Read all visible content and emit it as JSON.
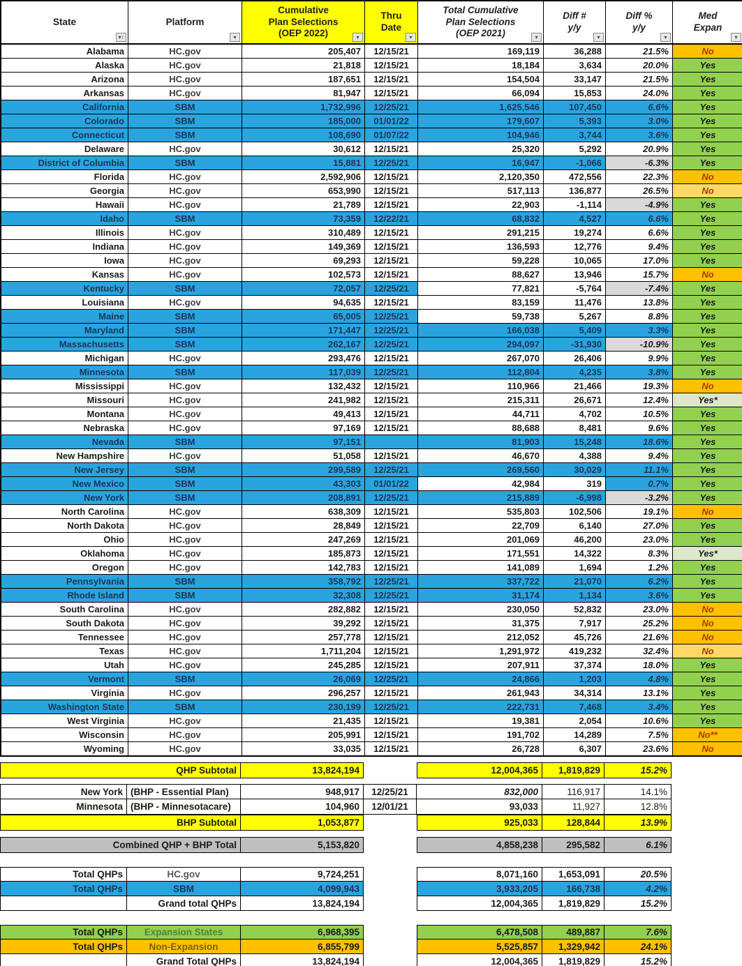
{
  "title": "Cumulative ACA Plan Selections by State — OEP 2022 vs OEP 2021",
  "colors": {
    "blue": "#2AA4DE",
    "navy": "#17375D",
    "yellow": "#FFFF00",
    "green": "#92D050",
    "lgreen": "#DCE8C8",
    "orange": "#FFC000",
    "lorange": "#FFD965",
    "gray_cell": "#D9D9D9",
    "combined_gray": "#BFBFBF",
    "no_text": "#A93A0A",
    "expansion_label": "#55803C",
    "nonexpansion_label": "#7F6000",
    "hcgov_total_label": "#595959"
  },
  "columns": [
    {
      "id": "state",
      "label": "State",
      "italic": false,
      "yellow": false,
      "filter": "sort"
    },
    {
      "id": "platform",
      "label": "Platform",
      "italic": false,
      "yellow": false,
      "filter": "drop"
    },
    {
      "id": "oep2022",
      "label": "Cumulative\nPlan Selections\n(OEP 2022)",
      "italic": false,
      "yellow": true,
      "filter": "drop"
    },
    {
      "id": "thru_date",
      "label": "Thru\nDate",
      "italic": false,
      "yellow": true,
      "filter": "drop"
    },
    {
      "id": "oep2021",
      "label": "Total Cumulative\nPlan Selections\n(OEP 2021)",
      "italic": true,
      "yellow": false,
      "filter": "drop"
    },
    {
      "id": "diff_num",
      "label": "Diff #\ny/y",
      "italic": true,
      "yellow": false,
      "filter": "drop"
    },
    {
      "id": "diff_pct",
      "label": "Diff %\ny/y",
      "italic": true,
      "yellow": false,
      "filter": "drop"
    },
    {
      "id": "med_expan",
      "label": "Med\nExpan",
      "italic": true,
      "yellow": false,
      "filter": "drop"
    }
  ],
  "states": [
    {
      "state": "Alabama",
      "platform": "HC.gov",
      "type": "hc",
      "v22": "205,407",
      "thru": "12/15/21",
      "v21": "169,119",
      "dn": "36,288",
      "dp": "21.5%",
      "med": "No",
      "medc": "orange"
    },
    {
      "state": "Alaska",
      "platform": "HC.gov",
      "type": "hc",
      "v22": "21,818",
      "thru": "12/15/21",
      "v21": "18,184",
      "dn": "3,634",
      "dp": "20.0%",
      "med": "Yes",
      "medc": "green"
    },
    {
      "state": "Arizona",
      "platform": "HC.gov",
      "type": "hc",
      "v22": "187,651",
      "thru": "12/15/21",
      "v21": "154,504",
      "dn": "33,147",
      "dp": "21.5%",
      "med": "Yes",
      "medc": "green"
    },
    {
      "state": "Arkansas",
      "platform": "HC.gov",
      "type": "hc",
      "v22": "81,947",
      "thru": "12/15/21",
      "v21": "66,094",
      "dn": "15,853",
      "dp": "24.0%",
      "med": "Yes",
      "medc": "green"
    },
    {
      "state": "California",
      "platform": "SBM",
      "type": "sbm",
      "v22": "1,732,996",
      "thru": "12/25/21",
      "v21": "1,625,546",
      "dn": "107,450",
      "dp": "6.6%",
      "med": "Yes",
      "medc": "green"
    },
    {
      "state": "Colorado",
      "platform": "SBM",
      "type": "sbm",
      "v22": "185,000",
      "thru": "01/01/22",
      "v21": "179,607",
      "dn": "5,393",
      "dp": "3.0%",
      "med": "Yes",
      "medc": "green"
    },
    {
      "state": "Connecticut",
      "platform": "SBM",
      "type": "sbm",
      "v22": "108,690",
      "thru": "01/07/22",
      "v21": "104,946",
      "dn": "3,744",
      "dp": "3.6%",
      "med": "Yes",
      "medc": "green"
    },
    {
      "state": "Delaware",
      "platform": "HC.gov",
      "type": "hc",
      "v22": "30,612",
      "thru": "12/15/21",
      "v21": "25,320",
      "dn": "5,292",
      "dp": "20.9%",
      "med": "Yes",
      "medc": "green"
    },
    {
      "state": "District of Columbia",
      "platform": "SBM",
      "type": "sbm",
      "v22": "15,881",
      "thru": "12/25/21",
      "v21": "16,947",
      "dn": "-1,066",
      "dp": "-6.3%",
      "odp": "gray",
      "med": "Yes",
      "medc": "green"
    },
    {
      "state": "Florida",
      "platform": "HC.gov",
      "type": "hc",
      "v22": "2,592,906",
      "thru": "12/15/21",
      "v21": "2,120,350",
      "dn": "472,556",
      "dp": "22.3%",
      "med": "No",
      "medc": "orange"
    },
    {
      "state": "Georgia",
      "platform": "HC.gov",
      "type": "hc",
      "v22": "653,990",
      "thru": "12/15/21",
      "v21": "517,113",
      "dn": "136,877",
      "dp": "26.5%",
      "med": "No",
      "medc": "lorange"
    },
    {
      "state": "Hawaii",
      "platform": "HC.gov",
      "type": "hc",
      "v22": "21,789",
      "thru": "12/15/21",
      "v21": "22,903",
      "dn": "-1,114",
      "dp": "-4.9%",
      "odp": "gray",
      "med": "Yes",
      "medc": "green"
    },
    {
      "state": "Idaho",
      "platform": "SBM",
      "type": "sbm",
      "v22": "73,359",
      "thru": "12/22/21",
      "v21": "68,832",
      "dn": "4,527",
      "dp": "6.6%",
      "med": "Yes",
      "medc": "green"
    },
    {
      "state": "Illinois",
      "platform": "HC.gov",
      "type": "hc",
      "v22": "310,489",
      "thru": "12/15/21",
      "v21": "291,215",
      "dn": "19,274",
      "dp": "6.6%",
      "med": "Yes",
      "medc": "green"
    },
    {
      "state": "Indiana",
      "platform": "HC.gov",
      "type": "hc",
      "v22": "149,369",
      "thru": "12/15/21",
      "v21": "136,593",
      "dn": "12,776",
      "dp": "9.4%",
      "med": "Yes",
      "medc": "green"
    },
    {
      "state": "Iowa",
      "platform": "HC.gov",
      "type": "hc",
      "v22": "69,293",
      "thru": "12/15/21",
      "v21": "59,228",
      "dn": "10,065",
      "dp": "17.0%",
      "med": "Yes",
      "medc": "green"
    },
    {
      "state": "Kansas",
      "platform": "HC.gov",
      "type": "hc",
      "v22": "102,573",
      "thru": "12/15/21",
      "v21": "88,627",
      "dn": "13,946",
      "dp": "15.7%",
      "med": "No",
      "medc": "orange"
    },
    {
      "state": "Kentucky",
      "platform": "SBM",
      "type": "sbm",
      "v22": "72,057",
      "thru": "12/25/21",
      "v21": "77,821",
      "o21": "white",
      "dn": "-5,764",
      "odn": "white",
      "dp": "-7.4%",
      "odp": "gray",
      "med": "Yes",
      "medc": "green"
    },
    {
      "state": "Louisiana",
      "platform": "HC.gov",
      "type": "hc",
      "v22": "94,635",
      "thru": "12/15/21",
      "v21": "83,159",
      "dn": "11,476",
      "dp": "13.8%",
      "med": "Yes",
      "medc": "green"
    },
    {
      "state": "Maine",
      "platform": "SBM",
      "type": "sbm",
      "v22": "65,005",
      "thru": "12/25/21",
      "v21": "59,738",
      "o21": "white",
      "dn": "5,267",
      "odn": "white",
      "dp": "8.8%",
      "odp": "white",
      "med": "Yes",
      "medc": "green"
    },
    {
      "state": "Maryland",
      "platform": "SBM",
      "type": "sbm",
      "v22": "171,447",
      "thru": "12/25/21",
      "v21": "166,038",
      "dn": "5,409",
      "dp": "3.3%",
      "med": "Yes",
      "medc": "green"
    },
    {
      "state": "Massachusetts",
      "platform": "SBM",
      "type": "sbm",
      "v22": "262,167",
      "thru": "12/25/21",
      "v21": "294,097",
      "dn": "-31,930",
      "dp": "-10.9%",
      "odp": "gray",
      "med": "Yes",
      "medc": "green"
    },
    {
      "state": "Michigan",
      "platform": "HC.gov",
      "type": "hc",
      "v22": "293,476",
      "thru": "12/15/21",
      "v21": "267,070",
      "dn": "26,406",
      "dp": "9.9%",
      "med": "Yes",
      "medc": "green"
    },
    {
      "state": "Minnesota",
      "platform": "SBM",
      "type": "sbm",
      "v22": "117,039",
      "thru": "12/25/21",
      "v21": "112,804",
      "dn": "4,235",
      "dp": "3.8%",
      "med": "Yes",
      "medc": "green"
    },
    {
      "state": "Mississippi",
      "platform": "HC.gov",
      "type": "hc",
      "v22": "132,432",
      "thru": "12/15/21",
      "v21": "110,966",
      "dn": "21,466",
      "dp": "19.3%",
      "med": "No",
      "medc": "orange"
    },
    {
      "state": "Missouri",
      "platform": "HC.gov",
      "type": "hc",
      "v22": "241,982",
      "thru": "12/15/21",
      "v21": "215,311",
      "dn": "26,671",
      "dp": "12.4%",
      "med": "Yes*",
      "medc": "lgreen"
    },
    {
      "state": "Montana",
      "platform": "HC.gov",
      "type": "hc",
      "v22": "49,413",
      "thru": "12/15/21",
      "v21": "44,711",
      "dn": "4,702",
      "dp": "10.5%",
      "med": "Yes",
      "medc": "green"
    },
    {
      "state": "Nebraska",
      "platform": "HC.gov",
      "type": "hc",
      "v22": "97,169",
      "thru": "12/15/21",
      "v21": "88,688",
      "dn": "8,481",
      "dp": "9.6%",
      "med": "Yes",
      "medc": "green"
    },
    {
      "state": "Nevada",
      "platform": "SBM",
      "type": "sbm",
      "v22": "97,151",
      "thru": "",
      "v21": "81,903",
      "dn": "15,248",
      "dp": "18.6%",
      "med": "Yes",
      "medc": "green"
    },
    {
      "state": "New Hampshire",
      "platform": "HC.gov",
      "type": "hc",
      "v22": "51,058",
      "thru": "12/15/21",
      "v21": "46,670",
      "dn": "4,388",
      "dp": "9.4%",
      "med": "Yes",
      "medc": "green"
    },
    {
      "state": "New Jersey",
      "platform": "SBM",
      "type": "sbm",
      "v22": "299,589",
      "thru": "12/25/21",
      "v21": "269,560",
      "dn": "30,029",
      "dp": "11.1%",
      "med": "Yes",
      "medc": "green"
    },
    {
      "state": "New Mexico",
      "platform": "SBM",
      "type": "sbm",
      "v22": "43,303",
      "thru": "01/01/22",
      "v21": "42,984",
      "o21": "white",
      "dn": "319",
      "odn": "white",
      "dp": "0.7%",
      "med": "Yes",
      "medc": "green"
    },
    {
      "state": "New York",
      "platform": "SBM",
      "type": "sbm",
      "v22": "208,891",
      "thru": "12/25/21",
      "v21": "215,889",
      "dn": "-6,998",
      "dp": "-3.2%",
      "odp": "gray",
      "med": "Yes",
      "medc": "green"
    },
    {
      "state": "North Carolina",
      "platform": "HC.gov",
      "type": "hc",
      "v22": "638,309",
      "thru": "12/15/21",
      "v21": "535,803",
      "dn": "102,506",
      "dp": "19.1%",
      "med": "No",
      "medc": "orange"
    },
    {
      "state": "North Dakota",
      "platform": "HC.gov",
      "type": "hc",
      "v22": "28,849",
      "thru": "12/15/21",
      "v21": "22,709",
      "dn": "6,140",
      "dp": "27.0%",
      "med": "Yes",
      "medc": "green"
    },
    {
      "state": "Ohio",
      "platform": "HC.gov",
      "type": "hc",
      "v22": "247,269",
      "thru": "12/15/21",
      "v21": "201,069",
      "dn": "46,200",
      "dp": "23.0%",
      "med": "Yes",
      "medc": "green"
    },
    {
      "state": "Oklahoma",
      "platform": "HC.gov",
      "type": "hc",
      "v22": "185,873",
      "thru": "12/15/21",
      "v21": "171,551",
      "dn": "14,322",
      "dp": "8.3%",
      "med": "Yes*",
      "medc": "lgreen"
    },
    {
      "state": "Oregon",
      "platform": "HC.gov",
      "type": "hc",
      "v22": "142,783",
      "thru": "12/15/21",
      "v21": "141,089",
      "dn": "1,694",
      "dp": "1.2%",
      "med": "Yes",
      "medc": "green"
    },
    {
      "state": "Pennsylvania",
      "platform": "SBM",
      "type": "sbm",
      "v22": "358,792",
      "thru": "12/25/21",
      "v21": "337,722",
      "dn": "21,070",
      "dp": "6.2%",
      "med": "Yes",
      "medc": "green"
    },
    {
      "state": "Rhode Island",
      "platform": "SBM",
      "type": "sbm",
      "v22": "32,308",
      "thru": "12/25/21",
      "v21": "31,174",
      "dn": "1,134",
      "dp": "3.6%",
      "med": "Yes",
      "medc": "green"
    },
    {
      "state": "South Carolina",
      "platform": "HC.gov",
      "type": "hc",
      "v22": "282,882",
      "thru": "12/15/21",
      "v21": "230,050",
      "dn": "52,832",
      "dp": "23.0%",
      "med": "No",
      "medc": "orange"
    },
    {
      "state": "South Dakota",
      "platform": "HC.gov",
      "type": "hc",
      "v22": "39,292",
      "thru": "12/15/21",
      "v21": "31,375",
      "dn": "7,917",
      "dp": "25.2%",
      "med": "No",
      "medc": "orange"
    },
    {
      "state": "Tennessee",
      "platform": "HC.gov",
      "type": "hc",
      "v22": "257,778",
      "thru": "12/15/21",
      "v21": "212,052",
      "dn": "45,726",
      "dp": "21.6%",
      "med": "No",
      "medc": "orange"
    },
    {
      "state": "Texas",
      "platform": "HC.gov",
      "type": "hc",
      "v22": "1,711,204",
      "thru": "12/15/21",
      "v21": "1,291,972",
      "dn": "419,232",
      "dp": "32.4%",
      "med": "No",
      "medc": "lorange"
    },
    {
      "state": "Utah",
      "platform": "HC.gov",
      "type": "hc",
      "v22": "245,285",
      "thru": "12/15/21",
      "v21": "207,911",
      "dn": "37,374",
      "dp": "18.0%",
      "med": "Yes",
      "medc": "green"
    },
    {
      "state": "Vermont",
      "platform": "SBM",
      "type": "sbm",
      "v22": "26,069",
      "thru": "12/25/21",
      "v21": "24,866",
      "dn": "1,203",
      "dp": "4.8%",
      "med": "Yes",
      "medc": "green"
    },
    {
      "state": "Virginia",
      "platform": "HC.gov",
      "type": "hc",
      "v22": "296,257",
      "thru": "12/15/21",
      "v21": "261,943",
      "dn": "34,314",
      "dp": "13.1%",
      "med": "Yes",
      "medc": "green"
    },
    {
      "state": "Washington State",
      "platform": "SBM",
      "type": "sbm",
      "v22": "230,199",
      "thru": "12/25/21",
      "v21": "222,731",
      "dn": "7,468",
      "dp": "3.4%",
      "med": "Yes",
      "medc": "green"
    },
    {
      "state": "West Virginia",
      "platform": "HC.gov",
      "type": "hc",
      "v22": "21,435",
      "thru": "12/15/21",
      "v21": "19,381",
      "dn": "2,054",
      "dp": "10.6%",
      "med": "Yes",
      "medc": "green"
    },
    {
      "state": "Wisconsin",
      "platform": "HC.gov",
      "type": "hc",
      "v22": "205,991",
      "thru": "12/15/21",
      "v21": "191,702",
      "dn": "14,289",
      "dp": "7.5%",
      "med": "No**",
      "medc": "orange"
    },
    {
      "state": "Wyoming",
      "platform": "HC.gov",
      "type": "hc",
      "v22": "33,035",
      "thru": "12/15/21",
      "v21": "26,728",
      "dn": "6,307",
      "dp": "23.6%",
      "med": "No",
      "medc": "orange"
    }
  ],
  "sections": {
    "qhp_subtotal": {
      "label": "QHP Subtotal",
      "v22": "13,824,194",
      "v21": "12,004,365",
      "dn": "1,819,829",
      "dp": "15.2%"
    },
    "bhp_rows": [
      {
        "state": "New York",
        "program": "(BHP - Essential Plan)",
        "v22": "948,917",
        "thru": "12/25/21",
        "v21": "832,000",
        "v21_italic": true,
        "dn": "116,917",
        "dp": "14.1%"
      },
      {
        "state": "Minnesota",
        "program": "(BHP - Minnesotacare)",
        "v22": "104,960",
        "thru": "12/01/21",
        "v21": "93,033",
        "v21_italic": false,
        "dn": "11,927",
        "dp": "12.8%"
      }
    ],
    "bhp_subtotal": {
      "label": "BHP Subtotal",
      "v22": "1,053,877",
      "v21": "925,033",
      "dn": "128,844",
      "dp": "13.9%"
    },
    "combined": {
      "label": "Combined QHP + BHP Total",
      "v22": "5,153,820",
      "v21": "4,858,238",
      "dn": "295,582",
      "dp": "6.1%"
    },
    "platform_totals": [
      {
        "l1": "Total QHPs",
        "l2": "HC.gov",
        "bg": "white",
        "l2c": "hcgov_total_label",
        "v22": "9,724,251",
        "v21": "8,071,160",
        "dn": "1,653,091",
        "dp": "20.5%"
      },
      {
        "l1": "Total QHPs",
        "l2": "SBM",
        "bg": "blue",
        "l2c": "navy",
        "v22": "4,099,943",
        "v21": "3,933,205",
        "dn": "166,738",
        "dp": "4.2%"
      },
      {
        "l1": "",
        "l2": "Grand total QHPs",
        "bg": "white",
        "l2align": "right",
        "v22": "13,824,194",
        "v21": "12,004,365",
        "dn": "1,819,829",
        "dp": "15.2%"
      }
    ],
    "expansion_totals": [
      {
        "l1": "Total QHPs",
        "l2": "Expansion States",
        "bg": "green",
        "l2c": "expansion_label",
        "v22": "6,968,395",
        "v21": "6,478,508",
        "dn": "489,887",
        "dp": "7.6%"
      },
      {
        "l1": "Total QHPs",
        "l2": "Non-Expansion",
        "bg": "orange",
        "l2c": "nonexpansion_label",
        "v22": "6,855,799",
        "v21": "5,525,857",
        "dn": "1,329,942",
        "dp": "24.1%"
      },
      {
        "l1": "",
        "l2": "Grand Total QHPs",
        "bg": "white",
        "l2align": "right",
        "v22": "13,824,194",
        "v21": "12,004,365",
        "dn": "1,819,829",
        "dp": "15.2%"
      }
    ]
  }
}
